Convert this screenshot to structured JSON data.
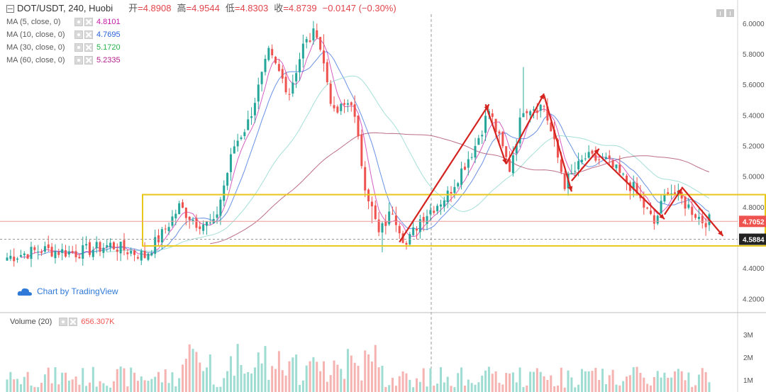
{
  "header": {
    "symbol": "DOT/USDT, 240, Huobi",
    "open_label": "开",
    "open_value": "=4.8908",
    "high_label": "高",
    "high_value": "=4.9544",
    "low_label": "低",
    "low_value": "=4.8303",
    "close_label": "收",
    "close_value": "=4.8739",
    "change": "−0.0147 (−0.30%)"
  },
  "indicators": [
    {
      "name": "MA (5, close, 0)",
      "value": "4.8101",
      "color": "#c41aa8"
    },
    {
      "name": "MA (10, close, 0)",
      "value": "4.7695",
      "color": "#2962d9"
    },
    {
      "name": "MA (30, close, 0)",
      "value": "5.1720",
      "color": "#23b34a"
    },
    {
      "name": "MA (60, close, 0)",
      "value": "5.2335",
      "color": "#b1208a"
    }
  ],
  "volume": {
    "name": "Volume (20)",
    "value": "656.307K"
  },
  "watermark": "Chart by TradingView",
  "colors": {
    "up": "#26a69a",
    "down": "#ef5350",
    "box": "#e8c61a",
    "trend": "#d4231f"
  },
  "price_axis": {
    "ticks": [
      "6.0000",
      "5.8000",
      "5.6000",
      "5.4000",
      "5.2000",
      "5.0000",
      "4.8000",
      "4.6000",
      "4.4000",
      "4.2000"
    ],
    "current_price": "4.7052",
    "marked_price": "4.5884"
  },
  "volume_axis": {
    "ticks": [
      "3M",
      "2M",
      "1M"
    ]
  },
  "chart_data": {
    "type": "candlestick",
    "x_count": 205,
    "y_range": [
      4.16,
      6.05
    ],
    "support_box": {
      "top": 4.88,
      "bottom": 4.545
    },
    "dashed_level": 4.5884,
    "current_level": 4.7052,
    "candle_keypoints": [
      [
        0,
        4.47
      ],
      [
        10,
        4.52
      ],
      [
        20,
        4.5
      ],
      [
        30,
        4.55
      ],
      [
        40,
        4.48
      ],
      [
        45,
        4.62
      ],
      [
        50,
        4.8
      ],
      [
        55,
        4.7
      ],
      [
        60,
        4.68
      ],
      [
        66,
        5.2
      ],
      [
        70,
        5.35
      ],
      [
        76,
        5.8
      ],
      [
        82,
        5.55
      ],
      [
        86,
        5.85
      ],
      [
        90,
        5.95
      ],
      [
        95,
        5.4
      ],
      [
        100,
        5.5
      ],
      [
        104,
        4.95
      ],
      [
        108,
        4.62
      ],
      [
        112,
        4.78
      ],
      [
        116,
        4.55
      ],
      [
        120,
        4.72
      ],
      [
        128,
        4.88
      ],
      [
        136,
        5.2
      ],
      [
        140,
        5.43
      ],
      [
        146,
        5.05
      ],
      [
        150,
        5.45
      ],
      [
        156,
        5.46
      ],
      [
        162,
        4.95
      ],
      [
        168,
        5.12
      ],
      [
        174,
        5.1
      ],
      [
        182,
        4.92
      ],
      [
        188,
        4.69
      ],
      [
        192,
        4.92
      ],
      [
        198,
        4.8
      ],
      [
        202,
        4.71
      ]
    ],
    "trend_lines": [
      [
        [
          114,
          4.57
        ],
        [
          140,
          5.47
        ]
      ],
      [
        [
          139,
          5.47
        ],
        [
          145,
          5.08
        ]
      ],
      [
        [
          145,
          5.08
        ],
        [
          156,
          5.54
        ]
      ],
      [
        [
          156,
          5.53
        ],
        [
          164,
          4.9
        ]
      ],
      [
        [
          164,
          4.97
        ],
        [
          172,
          5.18
        ]
      ],
      [
        [
          171,
          5.16
        ],
        [
          191,
          4.72
        ]
      ],
      [
        [
          191,
          4.75
        ],
        [
          196,
          4.92
        ]
      ],
      [
        [
          196,
          4.93
        ],
        [
          208,
          4.61
        ]
      ]
    ]
  }
}
